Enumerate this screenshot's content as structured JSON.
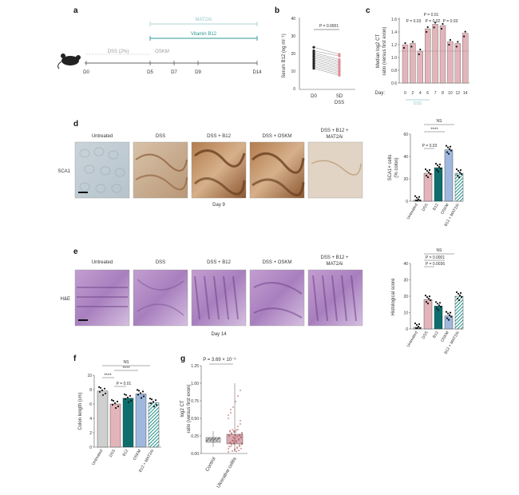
{
  "panels": {
    "a": {
      "label": "a",
      "top_label": "MAT2Ai",
      "mid_label": "Vitamin B12",
      "dss_label": "DSS (2%)",
      "oskm_label": "OSKM",
      "days": [
        "D0",
        "D5",
        "D7",
        "D9",
        "D14"
      ]
    },
    "b": {
      "label": "b",
      "ylabel": "Serum B12 (ng ml⁻¹)",
      "yticks": [
        "0",
        "10",
        "20",
        "30",
        "40"
      ],
      "pvalue": "P = 0.0001",
      "xcats": [
        "D0",
        "SD",
        "DSS"
      ]
    },
    "c": {
      "label": "c",
      "ylabel_1": "Median log2 CT",
      "ylabel_2": "ratio (versus first exon)",
      "yticks": [
        "0.6",
        "0.8",
        "1.0",
        "1.2",
        "1.4",
        "1.6"
      ],
      "day_label": "Day:",
      "days": [
        "0",
        "2",
        "4",
        "6",
        "7",
        "8",
        "10",
        "12",
        "14"
      ],
      "dss_label": "DSS",
      "p1": "P = 0.01",
      "p2": "P = 0.03",
      "p3": "P = 0.02",
      "p4": "P = 0.03"
    },
    "d": {
      "label": "d",
      "image_titles": [
        "Untreated",
        "DSS",
        "DSS + B12",
        "DSS + OSKM",
        "DSS + B12 +"
      ],
      "image_title_extra": "MAT2Ai",
      "row_label": "SCA1",
      "day": "Day 9",
      "ylabel_1": "SCA1+ cells",
      "ylabel_2": "(% colon)",
      "yticks": [
        "0",
        "20",
        "40",
        "60"
      ],
      "ns": "NS",
      "stars": "****",
      "pvalue": "P = 0.03",
      "xcats": [
        "Untreated",
        "DSS",
        "B12",
        "OSKM",
        "B12 + MAT2Ai"
      ]
    },
    "e": {
      "label": "e",
      "image_titles": [
        "Untreated",
        "DSS",
        "DSS + B12",
        "DSS + OSKM",
        "DSS + B12 +"
      ],
      "image_title_extra": "MAT2Ai",
      "row_label": "H&E",
      "day": "Day 14",
      "ylabel": "Histological score",
      "yticks": [
        "0",
        "10",
        "20",
        "30",
        "40"
      ],
      "ns": "NS",
      "p1": "P = 0.0001",
      "p2": "P = 0.0036",
      "xcats": [
        "Untreated",
        "DSS",
        "B12",
        "OSKM",
        "B12 + MAT2Ai"
      ]
    },
    "f": {
      "label": "f",
      "ylabel": "Colon length (cm)",
      "yticks": [
        "0",
        "2",
        "4",
        "6",
        "8",
        "10"
      ],
      "ns": "NS",
      "stars1": "****",
      "stars2": "****",
      "pvalue": "P = 0.01",
      "xcats": [
        "Untreated",
        "DSS",
        "B12",
        "OSKM",
        "B12 + MAT2Ai"
      ]
    },
    "g": {
      "label": "g",
      "pvalue": "P = 3.69 × 10⁻⁵",
      "ylabel_1": "log2 CT",
      "ylabel_2": "ratio (versus first exon)",
      "yticks": [
        "0.00",
        "0.25",
        "0.50",
        "0.75",
        "1.00",
        "1.25"
      ],
      "xcats": [
        "Control",
        "Ulcerative colitis"
      ]
    }
  },
  "colors": {
    "teal": "#2b9a97",
    "pink": "#e3b5ba",
    "darkteal": "#0d6e6e",
    "lightblue": "#9fb8df",
    "grey": "#cfcfcf",
    "hatch": "#1f8f87"
  },
  "chart_data": [
    {
      "type": "bar",
      "title": "",
      "categories": [
        "Untreated",
        "DSS",
        "B12",
        "OSKM",
        "B12 + MAT2Ai"
      ],
      "values": [
        1,
        25,
        30,
        46,
        25
      ],
      "ylabel": "SCA1+ cells (% colon)",
      "ylim": [
        0,
        60
      ]
    },
    {
      "type": "bar",
      "title": "",
      "categories": [
        "Untreated",
        "DSS",
        "B12",
        "OSKM",
        "B12 + MAT2Ai"
      ],
      "values": [
        1,
        18,
        14,
        8,
        20
      ],
      "ylabel": "Histological score",
      "ylim": [
        0,
        40
      ]
    },
    {
      "type": "bar",
      "title": "",
      "categories": [
        "Untreated",
        "DSS",
        "B12",
        "OSKM",
        "B12 + MAT2Ai"
      ],
      "values": [
        7.8,
        6.0,
        6.8,
        7.4,
        6.2
      ],
      "ylabel": "Colon length (cm)",
      "ylim": [
        0,
        10
      ]
    },
    {
      "type": "bar",
      "title": "",
      "categories": [
        "0",
        "2",
        "4",
        "6",
        "7",
        "8",
        "10",
        "12",
        "14"
      ],
      "values": [
        1.2,
        1.22,
        1.1,
        1.45,
        1.52,
        1.5,
        1.25,
        1.22,
        1.38
      ],
      "ylabel": "Median log2 CT ratio (versus first exon)",
      "ylim": [
        0.6,
        1.6
      ]
    }
  ]
}
